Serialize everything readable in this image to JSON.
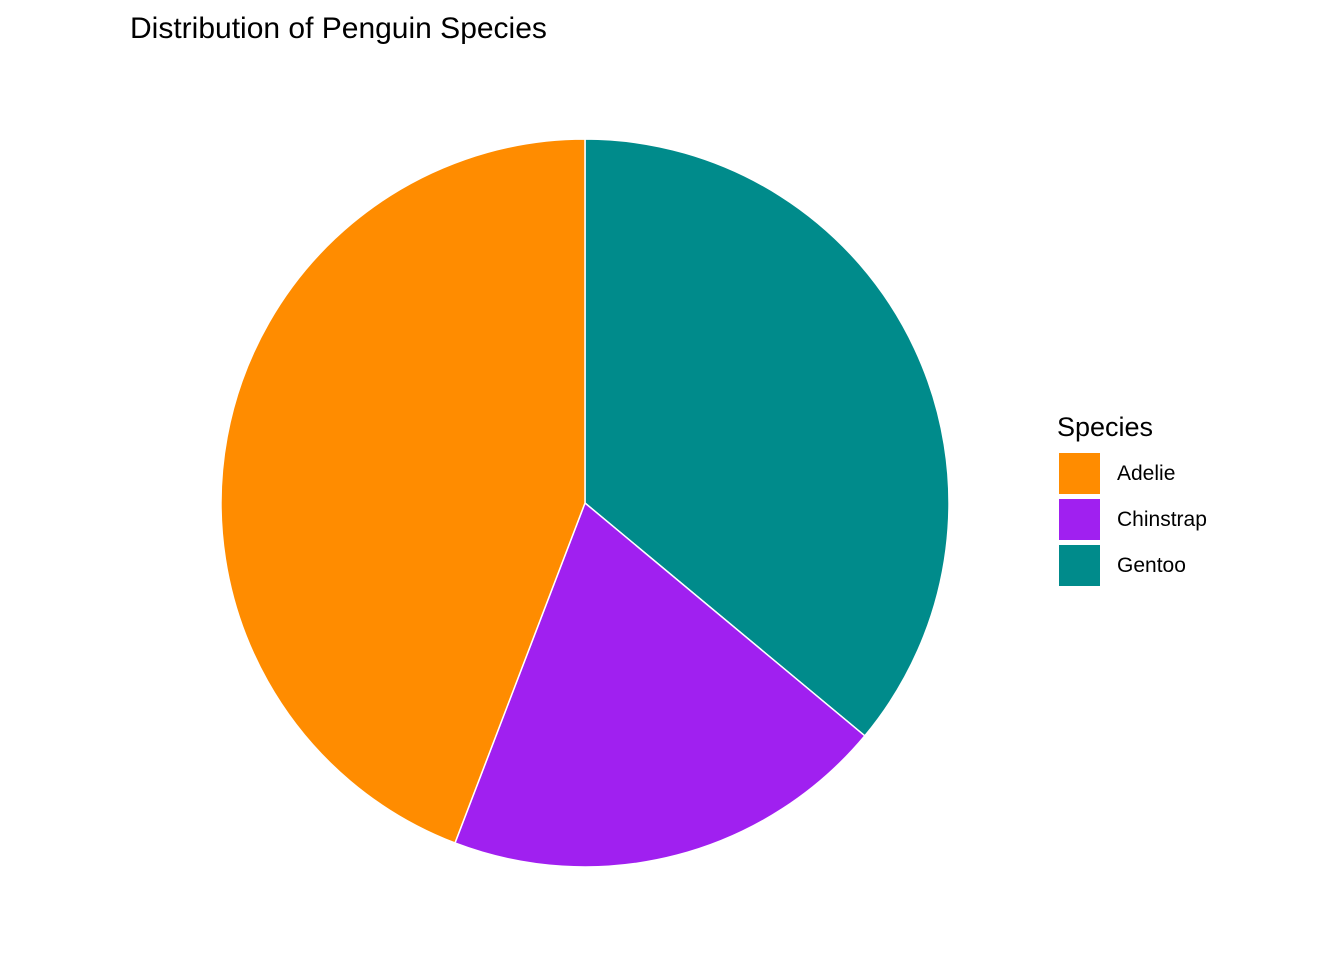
{
  "chart_data": {
    "type": "pie",
    "title": "Distribution of Penguin Species",
    "categories": [
      "Adelie",
      "Chinstrap",
      "Gentoo"
    ],
    "values": [
      152,
      68,
      124
    ],
    "colors": [
      "#FF8C00",
      "#A020F0",
      "#008B8B"
    ],
    "legend": {
      "title": "Species",
      "placement": "right"
    }
  }
}
